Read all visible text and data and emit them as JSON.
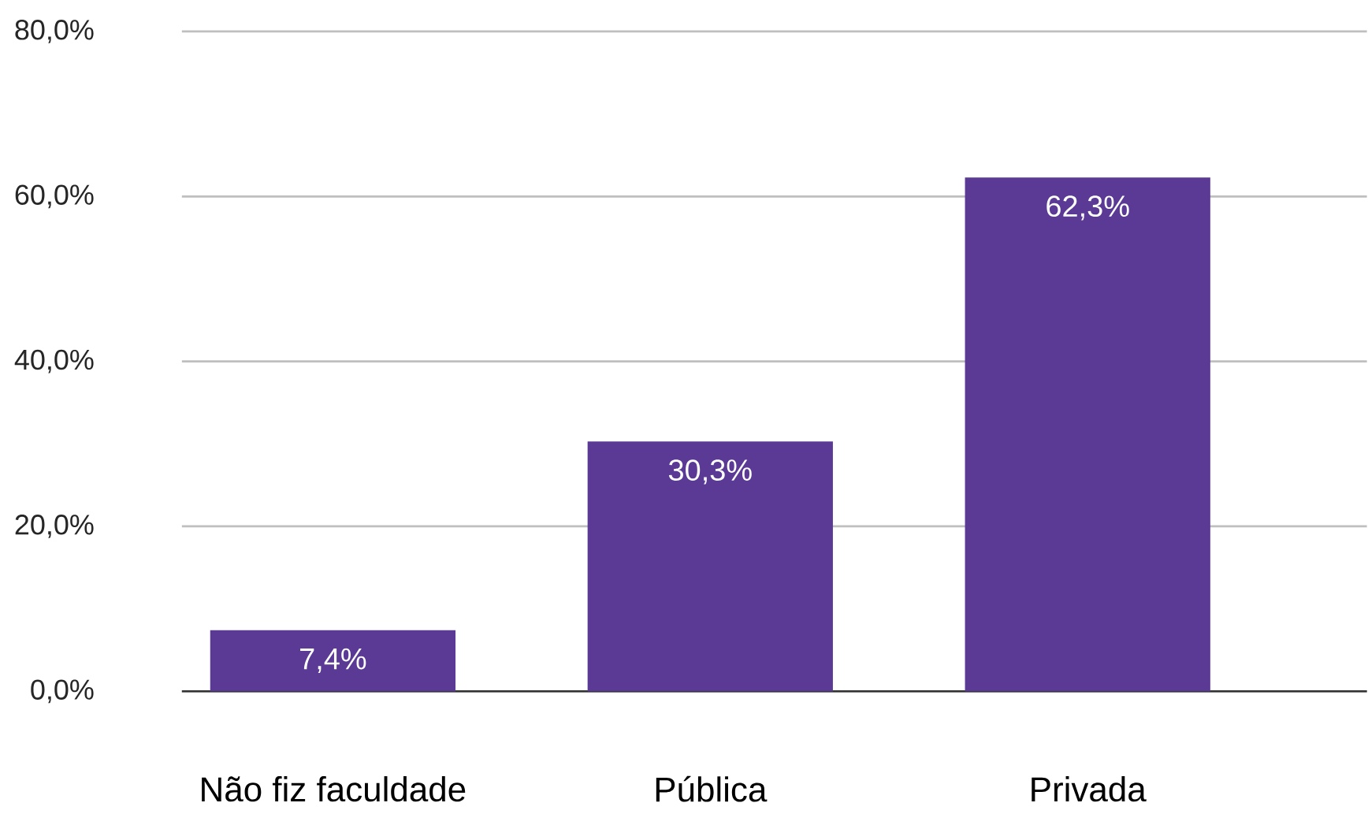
{
  "chart_data": {
    "type": "bar",
    "categories": [
      "Não fiz faculdade",
      "Pública",
      "Privada"
    ],
    "values": [
      7.4,
      30.3,
      62.3
    ],
    "value_labels": [
      "7,4%",
      "30,3%",
      "62,3%"
    ],
    "color": "#5b3a96",
    "ylim": [
      0,
      80
    ],
    "yticks": [
      {
        "value": 0,
        "label": "0,0%"
      },
      {
        "value": 20,
        "label": "20,0%"
      },
      {
        "value": 40,
        "label": "40,0%"
      },
      {
        "value": 60,
        "label": "60,0%"
      },
      {
        "value": 80,
        "label": "80,0%"
      }
    ],
    "grid": "y"
  }
}
